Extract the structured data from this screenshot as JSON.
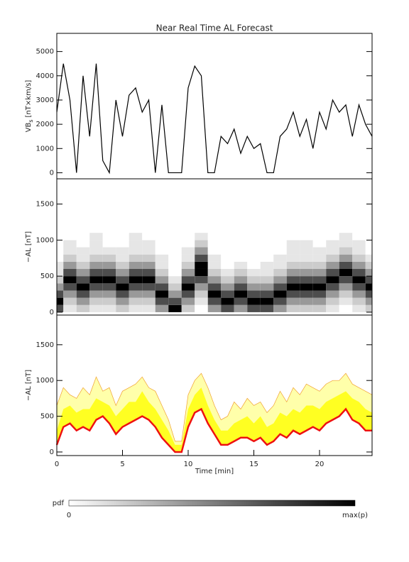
{
  "title": "Near Real Time AL Forecast",
  "xlabel": "Time [min]",
  "colorbar": {
    "label": "pdf",
    "min_label": "0",
    "max_label": "max(p)"
  },
  "chart_data": [
    {
      "type": "line",
      "ylabel": {
        "main": "VB",
        "sub": "s",
        "unit": "[nT×km/s]"
      },
      "xlim": [
        0,
        24
      ],
      "ylim": [
        -250,
        5750
      ],
      "yticks": [
        0,
        1000,
        2000,
        3000,
        4000,
        5000
      ],
      "color": "#000000",
      "x": [
        0,
        0.5,
        1,
        1.5,
        2,
        2.5,
        3,
        3.5,
        4,
        4.5,
        5,
        5.5,
        6,
        6.5,
        7,
        7.5,
        8,
        8.5,
        9,
        9.5,
        10,
        10.5,
        11,
        11.5,
        12,
        12.5,
        13,
        13.5,
        14,
        14.5,
        15,
        15.5,
        16,
        16.5,
        17,
        17.5,
        18,
        18.5,
        19,
        19.5,
        20,
        20.5,
        21,
        21.5,
        22,
        22.5,
        23,
        23.5,
        24
      ],
      "values": [
        2500,
        4500,
        3000,
        0,
        4000,
        1500,
        4500,
        500,
        0,
        3000,
        1500,
        3200,
        3500,
        2500,
        3000,
        0,
        2800,
        0,
        0,
        0,
        3500,
        4400,
        4000,
        0,
        0,
        1500,
        1200,
        1800,
        800,
        1500,
        1000,
        1200,
        0,
        0,
        1500,
        1800,
        2500,
        1500,
        2200,
        1000,
        2500,
        1800,
        3000,
        2500,
        2800,
        1500,
        2800,
        2000,
        1500
      ]
    },
    {
      "type": "heatmap",
      "ylabel": "−AL [nT]",
      "xlim": [
        0,
        24
      ],
      "ylim": [
        -40,
        1850
      ],
      "yticks": [
        0,
        500,
        1000,
        1500
      ],
      "x": [
        0,
        1,
        2,
        3,
        4,
        5,
        6,
        7,
        8,
        9,
        10,
        11,
        12,
        13,
        14,
        15,
        16,
        17,
        18,
        19,
        20,
        21,
        22,
        23,
        24
      ],
      "ybins": [
        0,
        100,
        200,
        300,
        400,
        500,
        600,
        700,
        800,
        900,
        1000,
        1100
      ],
      "z": [
        [
          0.7,
          1,
          0.7,
          0.4,
          0.2,
          0.1,
          0.1,
          0,
          0,
          0,
          0
        ],
        [
          0.1,
          0.2,
          0.4,
          0.7,
          1,
          0.7,
          0.4,
          0.2,
          0.1,
          0.1,
          0
        ],
        [
          0.2,
          0.4,
          0.7,
          1,
          0.7,
          0.4,
          0.2,
          0.1,
          0.1,
          0,
          0
        ],
        [
          0.1,
          0.2,
          0.4,
          0.7,
          1,
          0.7,
          0.4,
          0.2,
          0.1,
          0.1,
          0.1
        ],
        [
          0.1,
          0.2,
          0.4,
          0.7,
          1,
          0.7,
          0.4,
          0.2,
          0.1,
          0,
          0
        ],
        [
          0.2,
          0.4,
          0.7,
          1,
          0.7,
          0.4,
          0.2,
          0.1,
          0.1,
          0,
          0
        ],
        [
          0.1,
          0.2,
          0.4,
          0.7,
          1,
          0.7,
          0.4,
          0.2,
          0.1,
          0.1,
          0.1
        ],
        [
          0.1,
          0.2,
          0.4,
          0.7,
          1,
          0.7,
          0.4,
          0.2,
          0.1,
          0.1,
          0
        ],
        [
          0.4,
          0.7,
          1,
          0.7,
          0.4,
          0.2,
          0.1,
          0.1,
          0,
          0,
          0
        ],
        [
          1,
          0.7,
          0.4,
          0.2,
          0.1,
          0,
          0,
          0,
          0,
          0,
          0
        ],
        [
          0.2,
          0.4,
          0.7,
          1,
          0.7,
          0.4,
          0.2,
          0.1,
          0.1,
          0,
          0
        ],
        [
          0,
          0.1,
          0.2,
          0.4,
          0.7,
          1,
          1,
          0.7,
          0.4,
          0.2,
          0.1
        ],
        [
          0.4,
          0.7,
          1,
          0.7,
          0.4,
          0.2,
          0.1,
          0.1,
          0,
          0,
          0
        ],
        [
          0.7,
          1,
          0.7,
          0.4,
          0.2,
          0.1,
          0,
          0,
          0,
          0,
          0
        ],
        [
          0.4,
          0.7,
          1,
          0.7,
          0.4,
          0.2,
          0.1,
          0,
          0,
          0,
          0
        ],
        [
          0.7,
          1,
          0.7,
          0.4,
          0.2,
          0.1,
          0,
          0,
          0,
          0,
          0
        ],
        [
          0.7,
          1,
          0.7,
          0.4,
          0.2,
          0.1,
          0.1,
          0,
          0,
          0,
          0
        ],
        [
          0.4,
          0.7,
          1,
          0.7,
          0.4,
          0.2,
          0.1,
          0.1,
          0,
          0,
          0
        ],
        [
          0.2,
          0.4,
          0.7,
          1,
          0.7,
          0.4,
          0.2,
          0.1,
          0.1,
          0.1,
          0
        ],
        [
          0.2,
          0.4,
          0.7,
          1,
          0.7,
          0.4,
          0.2,
          0.1,
          0.1,
          0.1,
          0
        ],
        [
          0.2,
          0.4,
          0.7,
          1,
          0.7,
          0.4,
          0.2,
          0.1,
          0.1,
          0,
          0
        ],
        [
          0.1,
          0.2,
          0.4,
          0.7,
          1,
          0.7,
          0.4,
          0.2,
          0.1,
          0.1,
          0
        ],
        [
          0,
          0.1,
          0.2,
          0.4,
          0.7,
          1,
          0.7,
          0.4,
          0.2,
          0.1,
          0.1
        ],
        [
          0.1,
          0.2,
          0.4,
          0.7,
          1,
          0.7,
          0.4,
          0.2,
          0.1,
          0.1,
          0
        ],
        [
          0.2,
          0.4,
          0.7,
          1,
          0.7,
          0.4,
          0.2,
          0.1,
          0,
          0,
          0
        ]
      ]
    },
    {
      "type": "band",
      "ylabel": "−AL [nT]",
      "xlim": [
        0,
        24
      ],
      "ylim": [
        -50,
        1915
      ],
      "yticks": [
        0,
        500,
        1000,
        1500
      ],
      "xticks": [
        0,
        5,
        10,
        15,
        20
      ],
      "color": "#ee1111",
      "inner_color": "#ffff22",
      "outer_color": "#ffffaa",
      "outer_edge": "#f0a030",
      "x": [
        0,
        0.5,
        1,
        1.5,
        2,
        2.5,
        3,
        3.5,
        4,
        4.5,
        5,
        5.5,
        6,
        6.5,
        7,
        7.5,
        8,
        8.5,
        9,
        9.5,
        10,
        10.5,
        11,
        11.5,
        12,
        12.5,
        13,
        13.5,
        14,
        14.5,
        15,
        15.5,
        16,
        16.5,
        17,
        17.5,
        18,
        18.5,
        19,
        19.5,
        20,
        20.5,
        21,
        21.5,
        22,
        22.5,
        23,
        23.5,
        24
      ],
      "values": [
        100,
        350,
        400,
        300,
        350,
        300,
        450,
        500,
        400,
        250,
        350,
        400,
        450,
        500,
        450,
        350,
        200,
        100,
        0,
        0,
        350,
        550,
        600,
        400,
        250,
        100,
        100,
        150,
        200,
        200,
        150,
        200,
        100,
        150,
        250,
        200,
        300,
        250,
        300,
        350,
        300,
        400,
        450,
        500,
        600,
        450,
        400,
        300,
        300
      ],
      "inner": [
        300,
        600,
        650,
        550,
        600,
        600,
        750,
        700,
        650,
        500,
        600,
        700,
        700,
        850,
        700,
        600,
        450,
        300,
        100,
        100,
        600,
        800,
        900,
        650,
        450,
        300,
        300,
        400,
        450,
        500,
        400,
        500,
        350,
        400,
        550,
        500,
        600,
        550,
        650,
        650,
        600,
        700,
        750,
        800,
        850,
        750,
        700,
        600,
        550
      ],
      "outer": [
        650,
        900,
        800,
        750,
        900,
        800,
        1050,
        850,
        900,
        650,
        850,
        900,
        950,
        1050,
        900,
        850,
        650,
        450,
        150,
        150,
        800,
        1000,
        1100,
        900,
        650,
        450,
        500,
        700,
        600,
        750,
        650,
        700,
        550,
        650,
        850,
        700,
        900,
        800,
        950,
        900,
        850,
        950,
        1000,
        1000,
        1100,
        950,
        900,
        850,
        800
      ]
    }
  ]
}
